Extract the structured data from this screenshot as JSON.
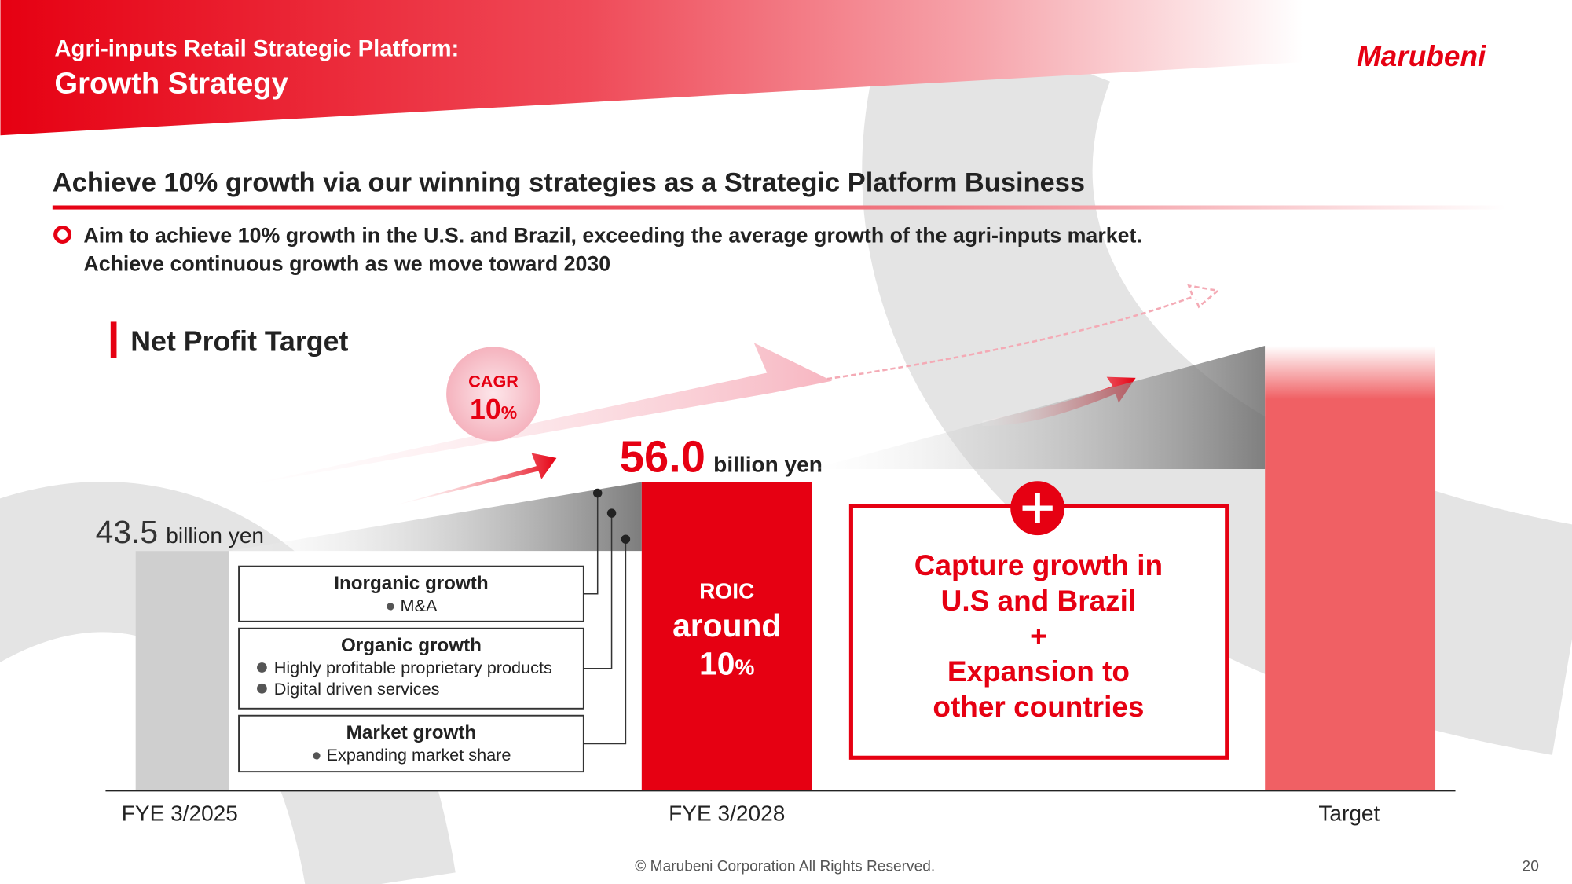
{
  "header": {
    "subtitle": "Agri-inputs Retail Strategic Platform:",
    "title": "Growth Strategy",
    "logo": "Marubeni"
  },
  "headline": "Achieve 10% growth via our winning strategies as a Strategic Platform Business",
  "bullet": [
    "Aim to achieve 10% growth in the U.S. and Brazil, exceeding the average growth of the agri-inputs market.",
    "Achieve continuous growth as we move toward 2030"
  ],
  "net_profit": {
    "title": "Net Profit Target",
    "bars": [
      {
        "category": "FYE 3/2025",
        "value": 43.5,
        "value_label": "43.5",
        "unit": "billion yen"
      },
      {
        "category": "FYE 3/2028",
        "value": 56,
        "value_label": "56.0",
        "unit": "billion yen"
      }
    ],
    "target_label": "Target",
    "cagr": {
      "label": "CAGR",
      "value": "10",
      "unit": "%"
    },
    "roic": {
      "label": "ROIC",
      "qualifier": "around",
      "value": "10",
      "unit": "%"
    },
    "drivers": [
      {
        "title": "Inorganic growth",
        "items": [
          "M&A"
        ]
      },
      {
        "title": "Organic growth",
        "items": [
          "Highly profitable proprietary products",
          "Digital driven services"
        ]
      },
      {
        "title": "Market growth",
        "items": [
          "Expanding market share"
        ]
      }
    ],
    "plus_box": [
      "Capture growth in",
      "U.S and Brazil",
      "+",
      "Expansion to",
      "other countries"
    ]
  },
  "footer": {
    "copyright": "© Marubeni Corporation All Rights Reserved.",
    "page": "20"
  }
}
